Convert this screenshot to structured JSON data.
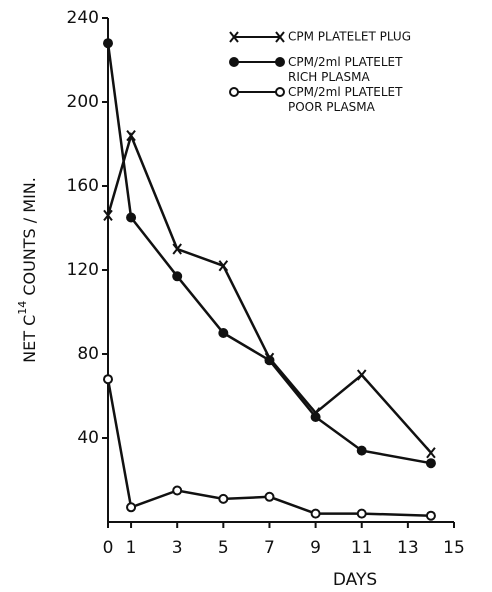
{
  "chart_data": {
    "type": "line",
    "ylabel_parts": [
      "NET C",
      "14",
      " COUNTS / MIN."
    ],
    "xlabel": "DAYS",
    "xlim": [
      0,
      15
    ],
    "xticks": [
      0,
      1,
      3,
      5,
      7,
      9,
      11,
      13,
      15
    ],
    "ylim": [
      0,
      240
    ],
    "yticks": [
      40,
      80,
      120,
      160,
      200,
      240
    ],
    "legend": "upper right",
    "series": [
      {
        "name": "CPM PLATELET PLUG",
        "marker": "x",
        "color": "#111111",
        "x": [
          0,
          1,
          3,
          5,
          7,
          9,
          11,
          14
        ],
        "values": [
          146,
          184,
          130,
          122,
          78,
          52,
          70,
          33
        ]
      },
      {
        "name": "CPM/2ml PLATELET RICH PLASMA",
        "marker": "filled-circle",
        "color": "#111111",
        "x": [
          0,
          1,
          3,
          5,
          7,
          9,
          11,
          14
        ],
        "values": [
          228,
          145,
          117,
          90,
          77,
          50,
          34,
          28
        ]
      },
      {
        "name": "CPM/2ml PLATELET POOR PLASMA",
        "marker": "open-circle",
        "color": "#111111",
        "x": [
          0,
          1,
          3,
          5,
          7,
          9,
          11,
          14
        ],
        "values": [
          68,
          7,
          15,
          11,
          12,
          4,
          4,
          3
        ]
      }
    ]
  }
}
